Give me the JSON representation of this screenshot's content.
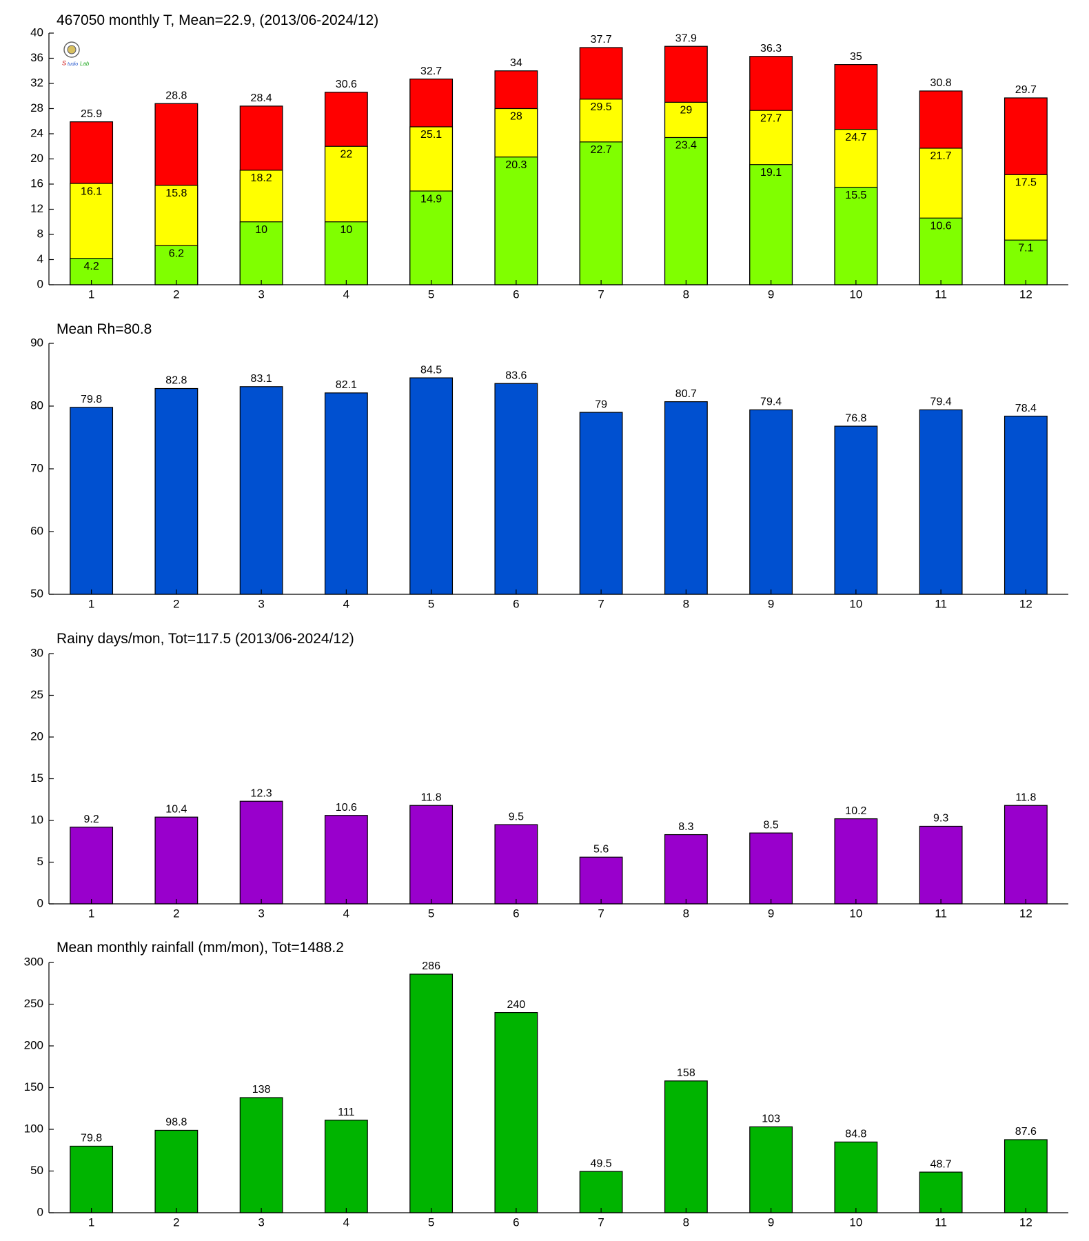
{
  "chart_data": [
    {
      "type": "overlay_bar",
      "title": "467050 monthly T, Mean=22.9, (2013/06-2024/12)",
      "categories": [
        "1",
        "2",
        "3",
        "4",
        "5",
        "6",
        "7",
        "8",
        "9",
        "10",
        "11",
        "12"
      ],
      "series": [
        {
          "color": "#ff0000",
          "values": [
            25.9,
            28.8,
            28.4,
            30.6,
            32.7,
            34,
            37.7,
            37.9,
            36.3,
            35,
            30.8,
            29.7
          ]
        },
        {
          "color": "#ffff00",
          "values": [
            16.1,
            15.8,
            18.2,
            22,
            25.1,
            28,
            29.5,
            29,
            27.7,
            24.7,
            21.7,
            17.5
          ]
        },
        {
          "color": "#80ff00",
          "values": [
            4.2,
            6.2,
            10,
            10,
            14.9,
            20.3,
            22.7,
            23.4,
            19.1,
            15.5,
            10.6,
            7.1
          ]
        }
      ],
      "ylim": [
        0,
        40
      ],
      "yticks": [
        0,
        4,
        8,
        12,
        16,
        20,
        24,
        28,
        32,
        36,
        40
      ]
    },
    {
      "type": "bar",
      "title": "Mean Rh=80.8",
      "categories": [
        "1",
        "2",
        "3",
        "4",
        "5",
        "6",
        "7",
        "8",
        "9",
        "10",
        "11",
        "12"
      ],
      "values": [
        79.8,
        82.8,
        83.1,
        82.1,
        84.5,
        83.6,
        79,
        80.7,
        79.4,
        76.8,
        79.4,
        78.4
      ],
      "color": "#0050d0",
      "ylim": [
        50,
        90
      ],
      "yticks": [
        50,
        60,
        70,
        80,
        90
      ]
    },
    {
      "type": "bar",
      "title": "Rainy days/mon, Tot=117.5 (2013/06-2024/12)",
      "categories": [
        "1",
        "2",
        "3",
        "4",
        "5",
        "6",
        "7",
        "8",
        "9",
        "10",
        "11",
        "12"
      ],
      "values": [
        9.2,
        10.4,
        12.3,
        10.6,
        11.8,
        9.5,
        5.6,
        8.3,
        8.5,
        10.2,
        9.3,
        11.8
      ],
      "color": "#9900cc",
      "ylim": [
        0,
        30
      ],
      "yticks": [
        0,
        5,
        10,
        15,
        20,
        25,
        30
      ]
    },
    {
      "type": "bar",
      "title": "Mean monthly rainfall (mm/mon), Tot=1488.2",
      "categories": [
        "1",
        "2",
        "3",
        "4",
        "5",
        "6",
        "7",
        "8",
        "9",
        "10",
        "11",
        "12"
      ],
      "values": [
        79.8,
        98.8,
        138,
        111,
        286,
        240,
        49.5,
        158,
        103,
        84.8,
        48.7,
        87.6
      ],
      "color": "#00b400",
      "ylim": [
        0,
        300
      ],
      "yticks": [
        0,
        50,
        100,
        150,
        200,
        250,
        300
      ]
    }
  ]
}
